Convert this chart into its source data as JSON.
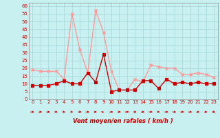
{
  "x": [
    0,
    1,
    2,
    3,
    4,
    5,
    6,
    7,
    8,
    9,
    10,
    11,
    12,
    13,
    14,
    15,
    16,
    17,
    18,
    19,
    20,
    21,
    22,
    23
  ],
  "rafales": [
    19,
    18,
    18,
    18,
    13,
    55,
    32,
    17,
    57,
    43,
    18,
    6,
    6,
    13,
    11,
    22,
    21,
    20,
    20,
    16,
    16,
    17,
    16,
    14
  ],
  "moyen": [
    9,
    9,
    9,
    10,
    12,
    10,
    10,
    17,
    11,
    29,
    5,
    6,
    6,
    6,
    12,
    12,
    7,
    13,
    10,
    11,
    10,
    11,
    10,
    10
  ],
  "bg_color": "#c8f0f0",
  "grid_color": "#a8dada",
  "line_color_rafales": "#ff9999",
  "line_color_moyen": "#cc0000",
  "xlabel": "Vent moyen/en rafales ( km/h )",
  "ylim": [
    0,
    62
  ],
  "yticks": [
    0,
    5,
    10,
    15,
    20,
    25,
    30,
    35,
    40,
    45,
    50,
    55,
    60
  ],
  "xticks": [
    0,
    1,
    2,
    3,
    4,
    5,
    6,
    7,
    8,
    9,
    10,
    11,
    12,
    13,
    14,
    15,
    16,
    17,
    18,
    19,
    20,
    21,
    22,
    23
  ],
  "arrow_angles": [
    180,
    200,
    180,
    160,
    150,
    145,
    180,
    180,
    210,
    230,
    180,
    200,
    180,
    160,
    190,
    180,
    150,
    180,
    170,
    190,
    180,
    200,
    210,
    160
  ]
}
